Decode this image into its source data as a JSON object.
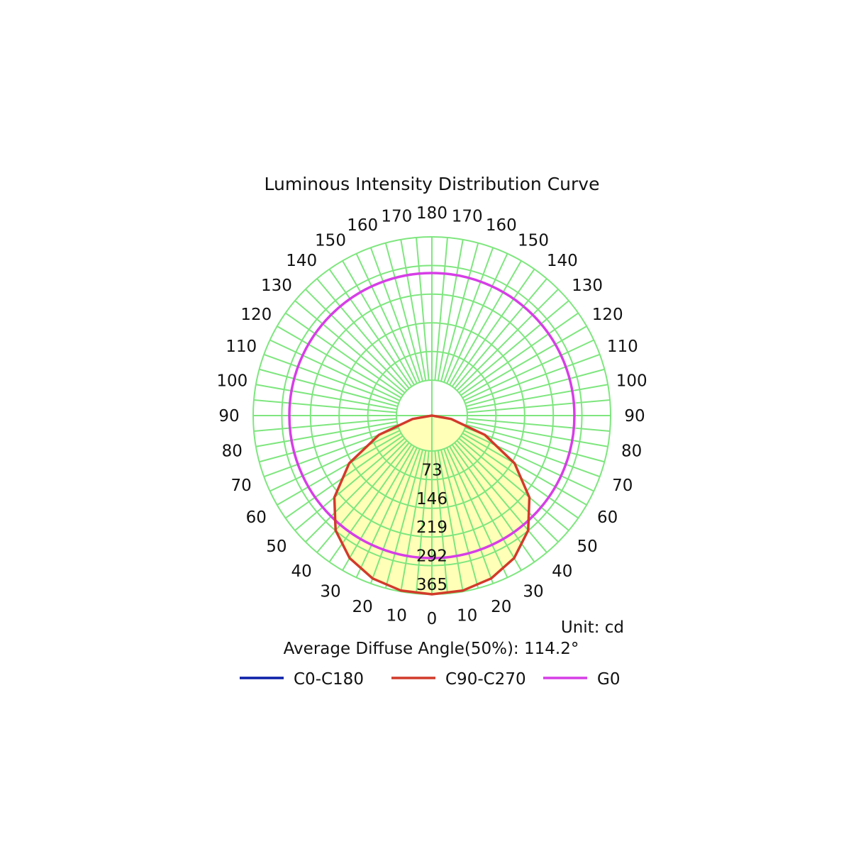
{
  "chart_data": {
    "type": "polar",
    "title": "Luminous Intensity Distribution Curve",
    "unit_label": "Unit: cd",
    "summary_label": "Average Diffuse Angle(50%): 114.2°",
    "radial_ticks": [
      "73",
      "146",
      "219",
      "292",
      "365"
    ],
    "radial_max": 365,
    "angle_ticks_left": [
      "0",
      "10",
      "20",
      "30",
      "40",
      "50",
      "60",
      "70",
      "80",
      "90",
      "100",
      "110",
      "120",
      "130",
      "140",
      "150",
      "160",
      "170",
      "180"
    ],
    "angle_ticks_right": [
      "10",
      "20",
      "30",
      "40",
      "50",
      "60",
      "70",
      "80",
      "90",
      "100",
      "110",
      "120",
      "130",
      "140",
      "150",
      "160",
      "170"
    ],
    "grid": true,
    "grid_color": "#7ee67e",
    "fill_color": "#ffffb8",
    "series": [
      {
        "name": "C0-C180",
        "color": "#0a1fa8",
        "values": []
      },
      {
        "name": "C90-C270",
        "color": "#d23a2a",
        "angles": [
          0,
          10,
          20,
          30,
          40,
          50,
          60,
          70,
          80,
          90
        ],
        "values": [
          365,
          363,
          354,
          336,
          306,
          260,
          195,
          115,
          40,
          0
        ]
      },
      {
        "name": "G0",
        "color": "#d63ee6",
        "radius": 365
      }
    ],
    "legend_position": "bottom"
  }
}
